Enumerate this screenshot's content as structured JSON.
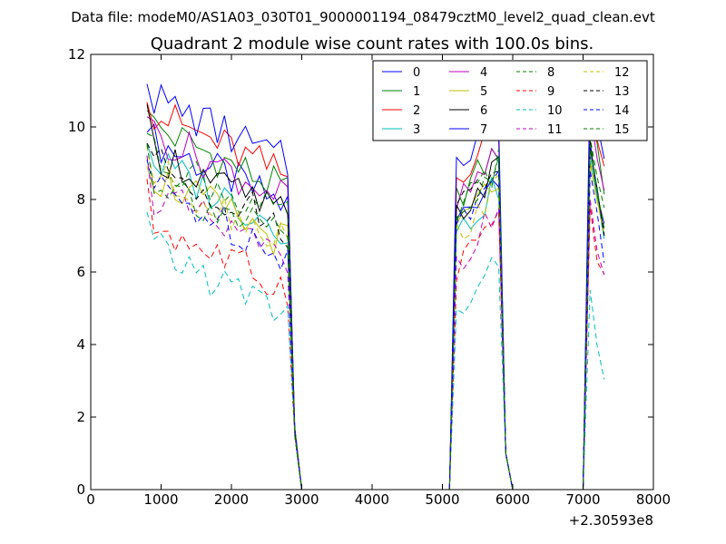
{
  "figure": {
    "suptitle": "Data file: modeM0/AS1A03_030T01_9000001194_08479cztM0_level2_quad_clean.evt"
  },
  "chart_data": {
    "type": "line",
    "title": "Quadrant 2 module wise count rates with 100.0s bins.",
    "xlabel": "",
    "ylabel": "",
    "x_offset_label": "+2.30593e8",
    "xlim": [
      0,
      8000
    ],
    "ylim": [
      0,
      12
    ],
    "xticks": [
      0,
      1000,
      2000,
      3000,
      4000,
      5000,
      6000,
      7000,
      8000
    ],
    "yticks": [
      0,
      2,
      4,
      6,
      8,
      10,
      12
    ],
    "grid": false,
    "legend_position": "top-right",
    "legend_columns": 4,
    "segments": [
      {
        "x_start": 800,
        "x_end": 2800,
        "zero_x": 3000
      },
      {
        "x_start": 5200,
        "x_end": 5800,
        "zero_before": 5100,
        "zero_after": 6000
      },
      {
        "x_start": 7100,
        "x_end": 7300,
        "zero_before": 7000
      }
    ],
    "dip_x": 2900,
    "edge_x": 5900,
    "zero_x_range": [
      3000,
      7000
    ],
    "series": [
      {
        "name": "0",
        "color": "#0000ff",
        "dash": "solid",
        "mean1": 8.6,
        "mean2": 8.0,
        "peak3": 9.6
      },
      {
        "name": "1",
        "color": "#008000",
        "dash": "solid",
        "mean1": 9.0,
        "mean2": 8.6,
        "peak3": 10.6
      },
      {
        "name": "2",
        "color": "#ff0000",
        "dash": "solid",
        "mean1": 9.4,
        "mean2": 9.2,
        "peak3": 10.9
      },
      {
        "name": "3",
        "color": "#00bfbf",
        "dash": "solid",
        "mean1": 8.0,
        "mean2": 7.6,
        "peak3": 9.2
      },
      {
        "name": "4",
        "color": "#bf00bf",
        "dash": "solid",
        "mean1": 8.8,
        "mean2": 8.4,
        "peak3": 10.4
      },
      {
        "name": "5",
        "color": "#bfbf00",
        "dash": "solid",
        "mean1": 7.6,
        "mean2": 7.8,
        "peak3": 9.0
      },
      {
        "name": "6",
        "color": "#000000",
        "dash": "solid",
        "mean1": 8.3,
        "mean2": 8.1,
        "peak3": 9.4
      },
      {
        "name": "7",
        "color": "#0000ff",
        "dash": "solid",
        "mean1": 9.8,
        "mean2": 9.6,
        "peak3": 11.5
      },
      {
        "name": "8",
        "color": "#008000",
        "dash": "dashed",
        "mean1": 8.2,
        "mean2": 8.2,
        "peak3": 9.7
      },
      {
        "name": "9",
        "color": "#ff0000",
        "dash": "dashed",
        "mean1": 6.3,
        "mean2": 6.8,
        "peak3": 7.8
      },
      {
        "name": "10",
        "color": "#00bfbf",
        "dash": "dashed",
        "mean1": 5.6,
        "mean2": 5.4,
        "peak3": 5.5
      },
      {
        "name": "11",
        "color": "#bf00bf",
        "dash": "dashed",
        "mean1": 7.1,
        "mean2": 6.9,
        "peak3": 8.0
      },
      {
        "name": "12",
        "color": "#bfbf00",
        "dash": "dashed",
        "mean1": 7.7,
        "mean2": 7.6,
        "peak3": 9.1
      },
      {
        "name": "13",
        "color": "#000000",
        "dash": "dashed",
        "mean1": 8.0,
        "mean2": 8.3,
        "peak3": 9.6
      },
      {
        "name": "14",
        "color": "#0000ff",
        "dash": "dashed",
        "mean1": 7.3,
        "mean2": 7.9,
        "peak3": 8.8
      },
      {
        "name": "15",
        "color": "#008000",
        "dash": "dashed",
        "mean1": 7.6,
        "mean2": 8.0,
        "peak3": 9.5
      }
    ]
  }
}
